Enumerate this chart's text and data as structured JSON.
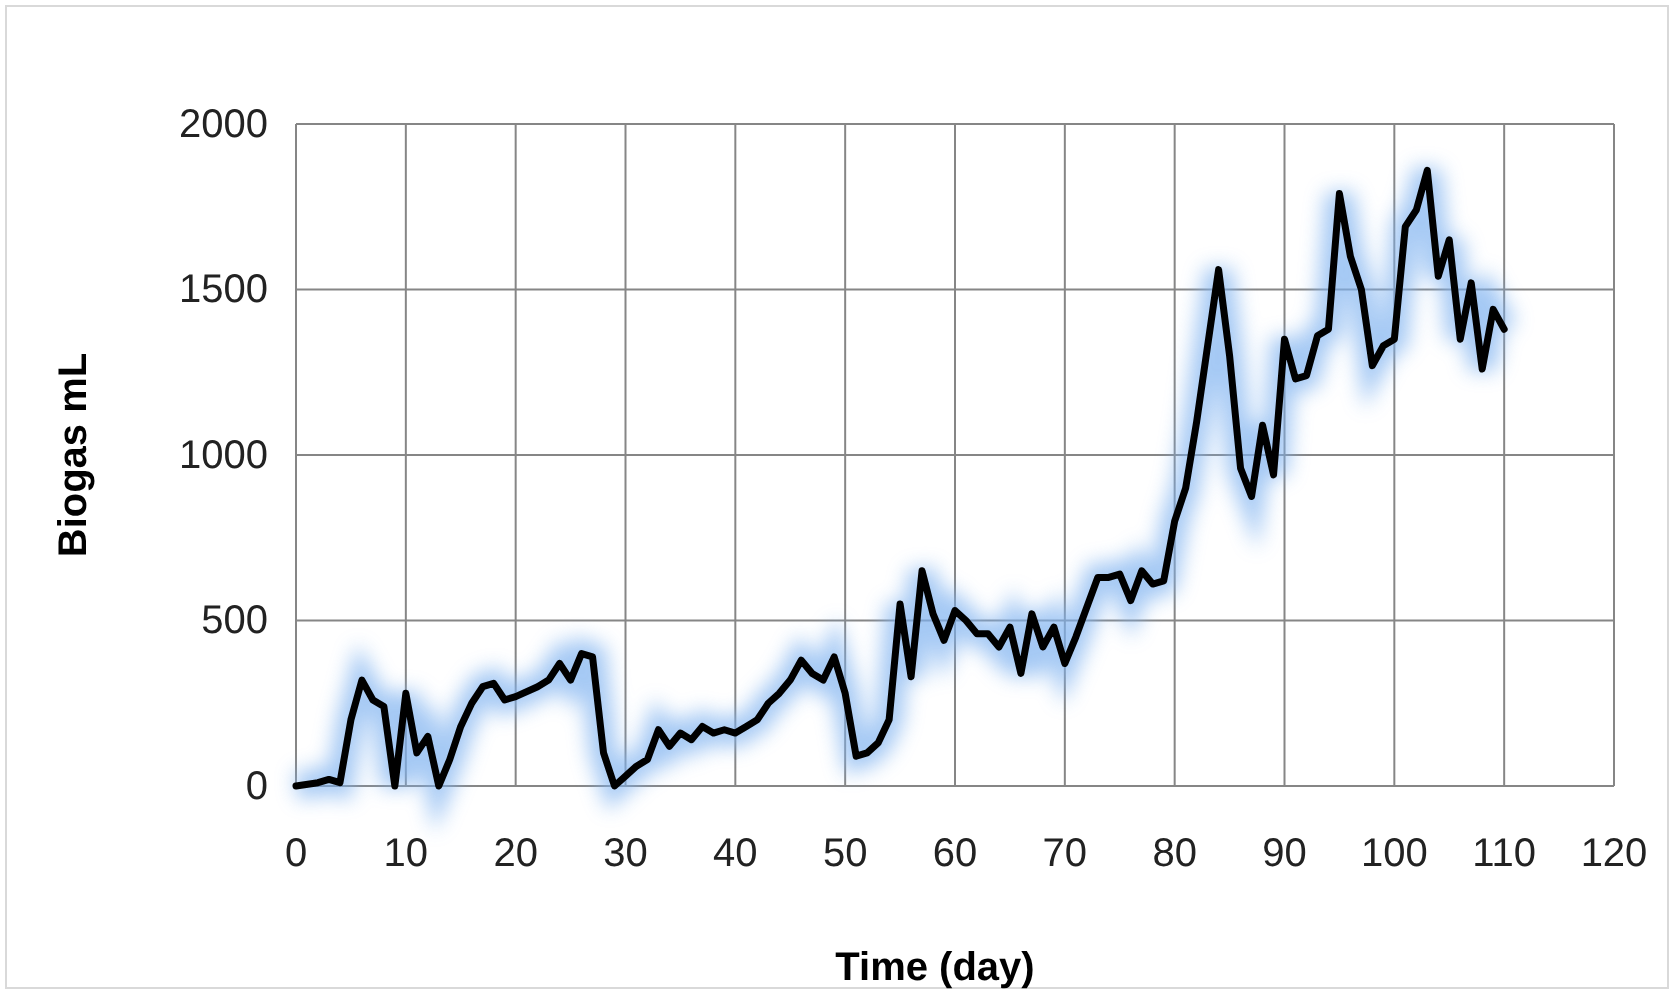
{
  "chart_data": {
    "type": "line",
    "xlabel": "Time (day)",
    "ylabel": "Biogas mL",
    "x": [
      0,
      2,
      3,
      4,
      5,
      6,
      7,
      8,
      9,
      10,
      11,
      12,
      13,
      14,
      15,
      16,
      17,
      18,
      19,
      20,
      22,
      23,
      24,
      25,
      26,
      27,
      28,
      29,
      30,
      31,
      32,
      33,
      34,
      35,
      36,
      37,
      38,
      39,
      40,
      41,
      42,
      43,
      44,
      45,
      46,
      47,
      48,
      49,
      50,
      51,
      52,
      53,
      54,
      55,
      56,
      57,
      58,
      59,
      60,
      61,
      62,
      63,
      64,
      65,
      66,
      67,
      68,
      69,
      70,
      71,
      73,
      74,
      75,
      76,
      77,
      78,
      79,
      80,
      81,
      82,
      84,
      85,
      86,
      87,
      88,
      89,
      90,
      91,
      92,
      93,
      94,
      95,
      96,
      97,
      98,
      99,
      100,
      101,
      102,
      103,
      104,
      105,
      106,
      107,
      108,
      109,
      110
    ],
    "series": [
      {
        "color": "#000000",
        "values": [
          0,
          10,
          20,
          10,
          200,
          320,
          260,
          240,
          0,
          280,
          100,
          150,
          0,
          80,
          180,
          250,
          300,
          310,
          260,
          270,
          300,
          320,
          370,
          320,
          400,
          390,
          100,
          0,
          30,
          60,
          80,
          170,
          120,
          160,
          140,
          180,
          160,
          170,
          160,
          180,
          200,
          250,
          280,
          320,
          380,
          340,
          320,
          390,
          280,
          90,
          100,
          130,
          200,
          550,
          330,
          650,
          520,
          440,
          530,
          500,
          460,
          460,
          420,
          480,
          340,
          520,
          420,
          480,
          370,
          450,
          630,
          630,
          640,
          560,
          650,
          610,
          620,
          800,
          900,
          1100,
          1560,
          1300,
          960,
          875,
          1090,
          940,
          1350,
          1230,
          1240,
          1360,
          1380,
          1790,
          1600,
          1500,
          1270,
          1330,
          1350,
          1690,
          1740,
          1860,
          1540,
          1650,
          1350,
          1520,
          1260,
          1440,
          1380
        ]
      }
    ],
    "xlim": [
      0,
      120
    ],
    "xticks": [
      0,
      10,
      20,
      30,
      40,
      50,
      60,
      70,
      80,
      90,
      100,
      110,
      120
    ],
    "ylim": [
      0,
      2000
    ],
    "yticks": [
      0,
      500,
      1000,
      1500,
      2000
    ],
    "grid": true,
    "marker": "none",
    "line_style": "solid"
  }
}
